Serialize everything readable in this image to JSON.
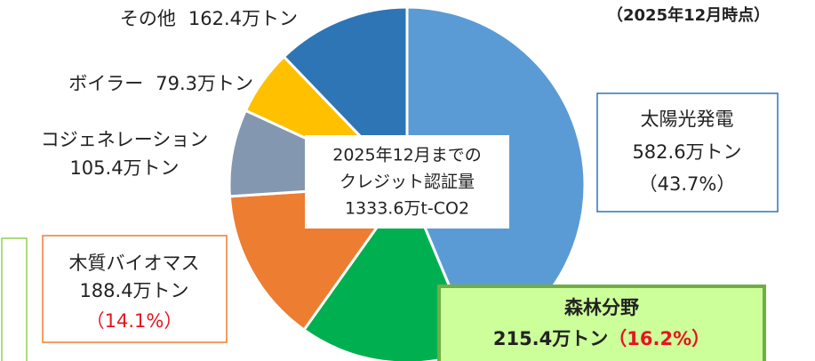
{
  "chart_data": {
    "type": "pie",
    "note": "（2025年12月時点）",
    "center_label": [
      "2025年12月までの",
      "クレジット認証量",
      "1333.6万t-CO2"
    ],
    "categories": [
      "太陽光発電",
      "森林分野",
      "木質バイオマス",
      "コジェネレーション",
      "ボイラー",
      "その他"
    ],
    "values": [
      582.6,
      215.4,
      188.4,
      105.4,
      79.3,
      162.4
    ],
    "value_labels": [
      "582.6万トン",
      "215.4万トン",
      "188.4万トン",
      "105.4万トン",
      "79.3万トン",
      "162.4万トン"
    ],
    "percent_labels": [
      "（43.7%）",
      "（16.2%）",
      "（14.1%）",
      null,
      null,
      null
    ],
    "colors": [
      "#5b9bd5",
      "#00b050",
      "#ed7d31",
      "#8497b0",
      "#ffc000",
      "#2e75b6"
    ]
  }
}
